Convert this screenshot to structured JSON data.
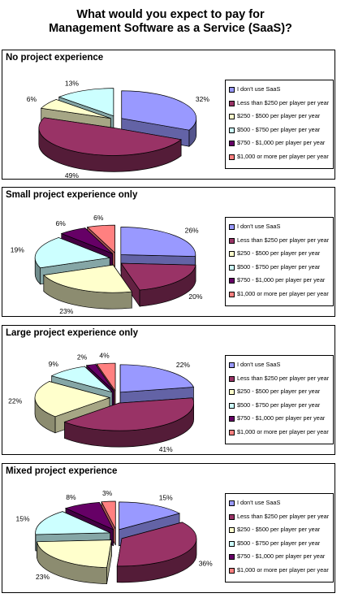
{
  "title_lines": [
    "What would you expect to pay for",
    "Management Software as a Service (SaaS)?"
  ],
  "colors": [
    "#9999ff",
    "#993366",
    "#ffffcc",
    "#ccffff",
    "#660066",
    "#ff8080"
  ],
  "legend": [
    "I don't use SaaS",
    "Less than $250 per player per year",
    "$250 - $500 per player per year",
    "$500 - $750 per player per year",
    "$750 - $1,000 per player per year",
    "$1,000 or more per player per year"
  ],
  "chart_data": [
    {
      "type": "pie",
      "title": "No project experience",
      "categories": [
        "I don't use SaaS",
        "Less than $250 per player per year",
        "$250 - $500 per player per year",
        "$500 - $750 per player per year",
        "$750 - $1,000 per player per year",
        "$1,000 or more per player per year"
      ],
      "values": [
        32,
        49,
        6,
        13,
        0,
        0
      ],
      "labels": [
        "32%",
        "49%",
        "6%",
        "13%",
        "",
        ""
      ],
      "legend_position": "right"
    },
    {
      "type": "pie",
      "title": "Small project experience only",
      "categories": [
        "I don't use SaaS",
        "Less than $250 per player per year",
        "$250 - $500 per player per year",
        "$500 - $750 per player per year",
        "$750 - $1,000 per player per year",
        "$1,000 or more per player per year"
      ],
      "values": [
        26,
        20,
        23,
        19,
        6,
        6
      ],
      "labels": [
        "26%",
        "20%",
        "23%",
        "19%",
        "6%",
        "6%"
      ],
      "legend_position": "right"
    },
    {
      "type": "pie",
      "title": "Large project experience only",
      "categories": [
        "I don't use SaaS",
        "Less than $250 per player per year",
        "$250 - $500 per player per year",
        "$500 - $750 per player per year",
        "$750 - $1,000 per player per year",
        "$1,000 or more per player per year"
      ],
      "values": [
        22,
        41,
        22,
        9,
        2,
        4
      ],
      "labels": [
        "22%",
        "41%",
        "22%",
        "9%",
        "2%",
        "4%"
      ],
      "legend_position": "right"
    },
    {
      "type": "pie",
      "title": "Mixed project experience",
      "categories": [
        "I don't use SaaS",
        "Less than $250 per player per year",
        "$250 - $500 per player per year",
        "$500 - $750 per player per year",
        "$750 - $1,000 per player per year",
        "$1,000 or more per player per year"
      ],
      "values": [
        15,
        36,
        23,
        15,
        8,
        3
      ],
      "labels": [
        "15%",
        "36%",
        "23%",
        "15%",
        "8%",
        "3%"
      ],
      "legend_position": "right"
    }
  ]
}
